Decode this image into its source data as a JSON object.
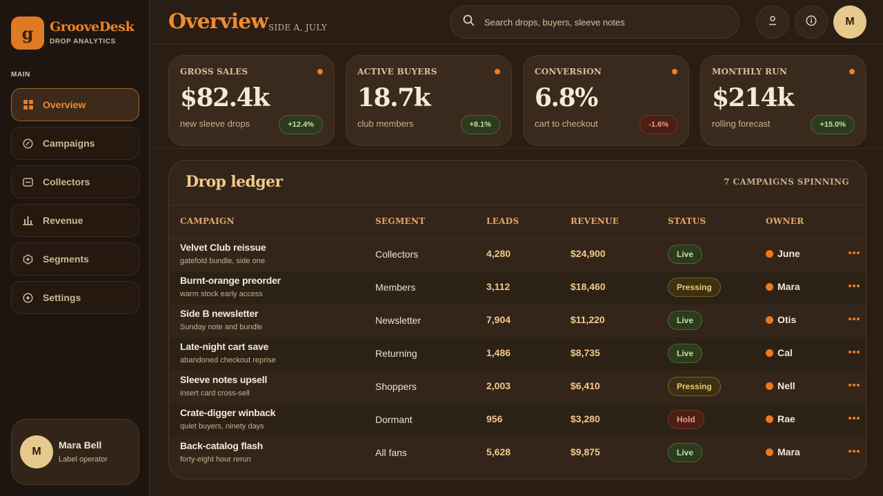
{
  "brand": {
    "logo_letter": "g",
    "name": "GrooveDesk",
    "subtitle": "DROP ANALYTICS"
  },
  "sidebar": {
    "section_label": "MAIN",
    "items": [
      {
        "label": "Overview",
        "icon": "grid-icon",
        "active": true
      },
      {
        "label": "Campaigns",
        "icon": "compass-icon"
      },
      {
        "label": "Collectors",
        "icon": "card-icon"
      },
      {
        "label": "Revenue",
        "icon": "bar-chart-icon"
      },
      {
        "label": "Segments",
        "icon": "hexagon-icon"
      },
      {
        "label": "Settings",
        "icon": "target-icon"
      }
    ],
    "user": {
      "initial": "M",
      "name": "Mara Bell",
      "role": "Label operator"
    }
  },
  "header": {
    "title": "Overview",
    "subtitle": "SIDE A, JULY",
    "search_placeholder": "Search drops, buyers, sleeve notes",
    "avatar_initial": "M"
  },
  "kpis": [
    {
      "label": "GROSS SALES",
      "value": "$82.4k",
      "caption": "new sleeve drops",
      "delta": "+12.4%",
      "trend": "up"
    },
    {
      "label": "ACTIVE BUYERS",
      "value": "18.7k",
      "caption": "club members",
      "delta": "+8.1%",
      "trend": "up"
    },
    {
      "label": "CONVERSION",
      "value": "6.8%",
      "caption": "cart to checkout",
      "delta": "-1.6%",
      "trend": "down"
    },
    {
      "label": "MONTHLY RUN",
      "value": "$214k",
      "caption": "rolling forecast",
      "delta": "+15.0%",
      "trend": "up"
    }
  ],
  "ledger": {
    "title": "Drop ledger",
    "meta": "7 CAMPAIGNS SPINNING",
    "columns": [
      "CAMPAIGN",
      "SEGMENT",
      "LEADS",
      "REVENUE",
      "STATUS",
      "OWNER"
    ],
    "rows": [
      {
        "name": "Velvet Club reissue",
        "note": "gatefold bundle, side one",
        "segment": "Collectors",
        "leads": "4,280",
        "revenue": "$24,900",
        "status": "Live",
        "owner": "June"
      },
      {
        "name": "Burnt-orange preorder",
        "note": "warm stock early access",
        "segment": "Members",
        "leads": "3,112",
        "revenue": "$18,460",
        "status": "Pressing",
        "owner": "Mara"
      },
      {
        "name": "Side B newsletter",
        "note": "Sunday note and bundle",
        "segment": "Newsletter",
        "leads": "7,904",
        "revenue": "$11,220",
        "status": "Live",
        "owner": "Otis"
      },
      {
        "name": "Late-night cart save",
        "note": "abandoned checkout reprise",
        "segment": "Returning",
        "leads": "1,486",
        "revenue": "$8,735",
        "status": "Live",
        "owner": "Cal"
      },
      {
        "name": "Sleeve notes upsell",
        "note": "insert card cross-sell",
        "segment": "Shoppers",
        "leads": "2,003",
        "revenue": "$6,410",
        "status": "Pressing",
        "owner": "Nell"
      },
      {
        "name": "Crate-digger winback",
        "note": "quiet buyers, ninety days",
        "segment": "Dormant",
        "leads": "956",
        "revenue": "$3,280",
        "status": "Hold",
        "owner": "Rae"
      },
      {
        "name": "Back-catalog flash",
        "note": "forty-eight hour rerun",
        "segment": "All fans",
        "leads": "5,628",
        "revenue": "$9,875",
        "status": "Live",
        "owner": "Mara"
      }
    ]
  },
  "colors": {
    "accent": "#ee8a2f",
    "background": "#2a1d14",
    "live": "#c2e09a",
    "pressing": "#f0c968",
    "hold": "#f09a82"
  }
}
